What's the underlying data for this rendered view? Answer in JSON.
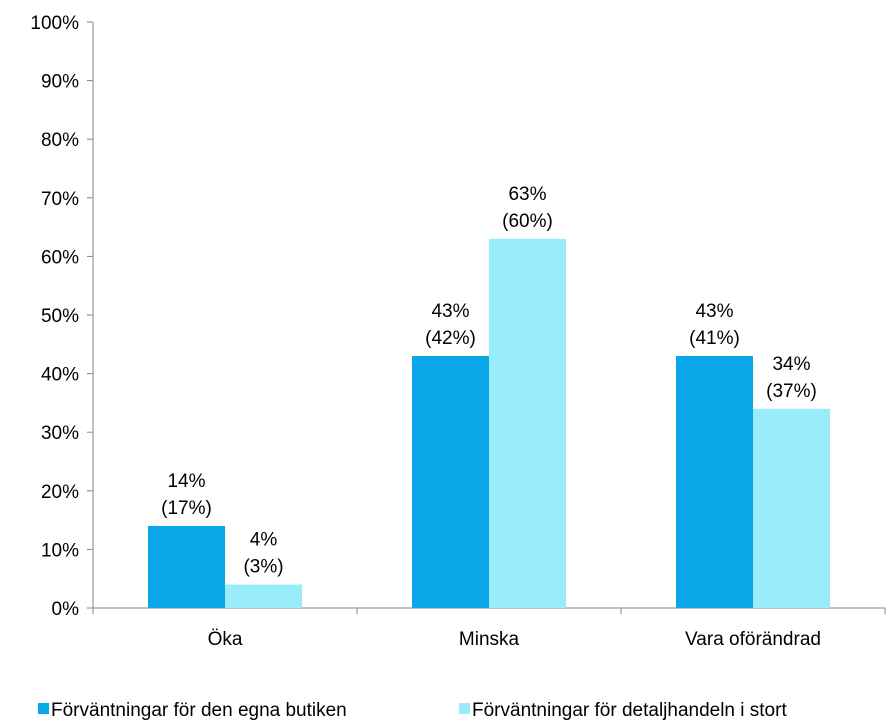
{
  "chart_data": {
    "type": "bar",
    "categories": [
      "Öka",
      "Minska",
      "Vara oförändrad"
    ],
    "ylim": [
      0,
      100
    ],
    "y_ticks": [
      "0%",
      "10%",
      "20%",
      "30%",
      "40%",
      "50%",
      "60%",
      "70%",
      "80%",
      "90%",
      "100%"
    ],
    "grid": false,
    "legend_position": "bottom",
    "series": [
      {
        "name": "Förväntningar för den egna butiken",
        "color": "#0aa7e8",
        "values": [
          14,
          43,
          43
        ],
        "labels": [
          [
            "14%",
            "(17%)"
          ],
          [
            "43%",
            "(42%)"
          ],
          [
            "43%",
            "(41%)"
          ]
        ]
      },
      {
        "name": "Förväntningar för detaljhandeln i stort",
        "color": "#99ecfc",
        "values": [
          4,
          63,
          34
        ],
        "labels": [
          [
            "4%",
            "(3%)"
          ],
          [
            "63%",
            "(60%)"
          ],
          [
            "34%",
            "(37%)"
          ]
        ]
      }
    ]
  }
}
